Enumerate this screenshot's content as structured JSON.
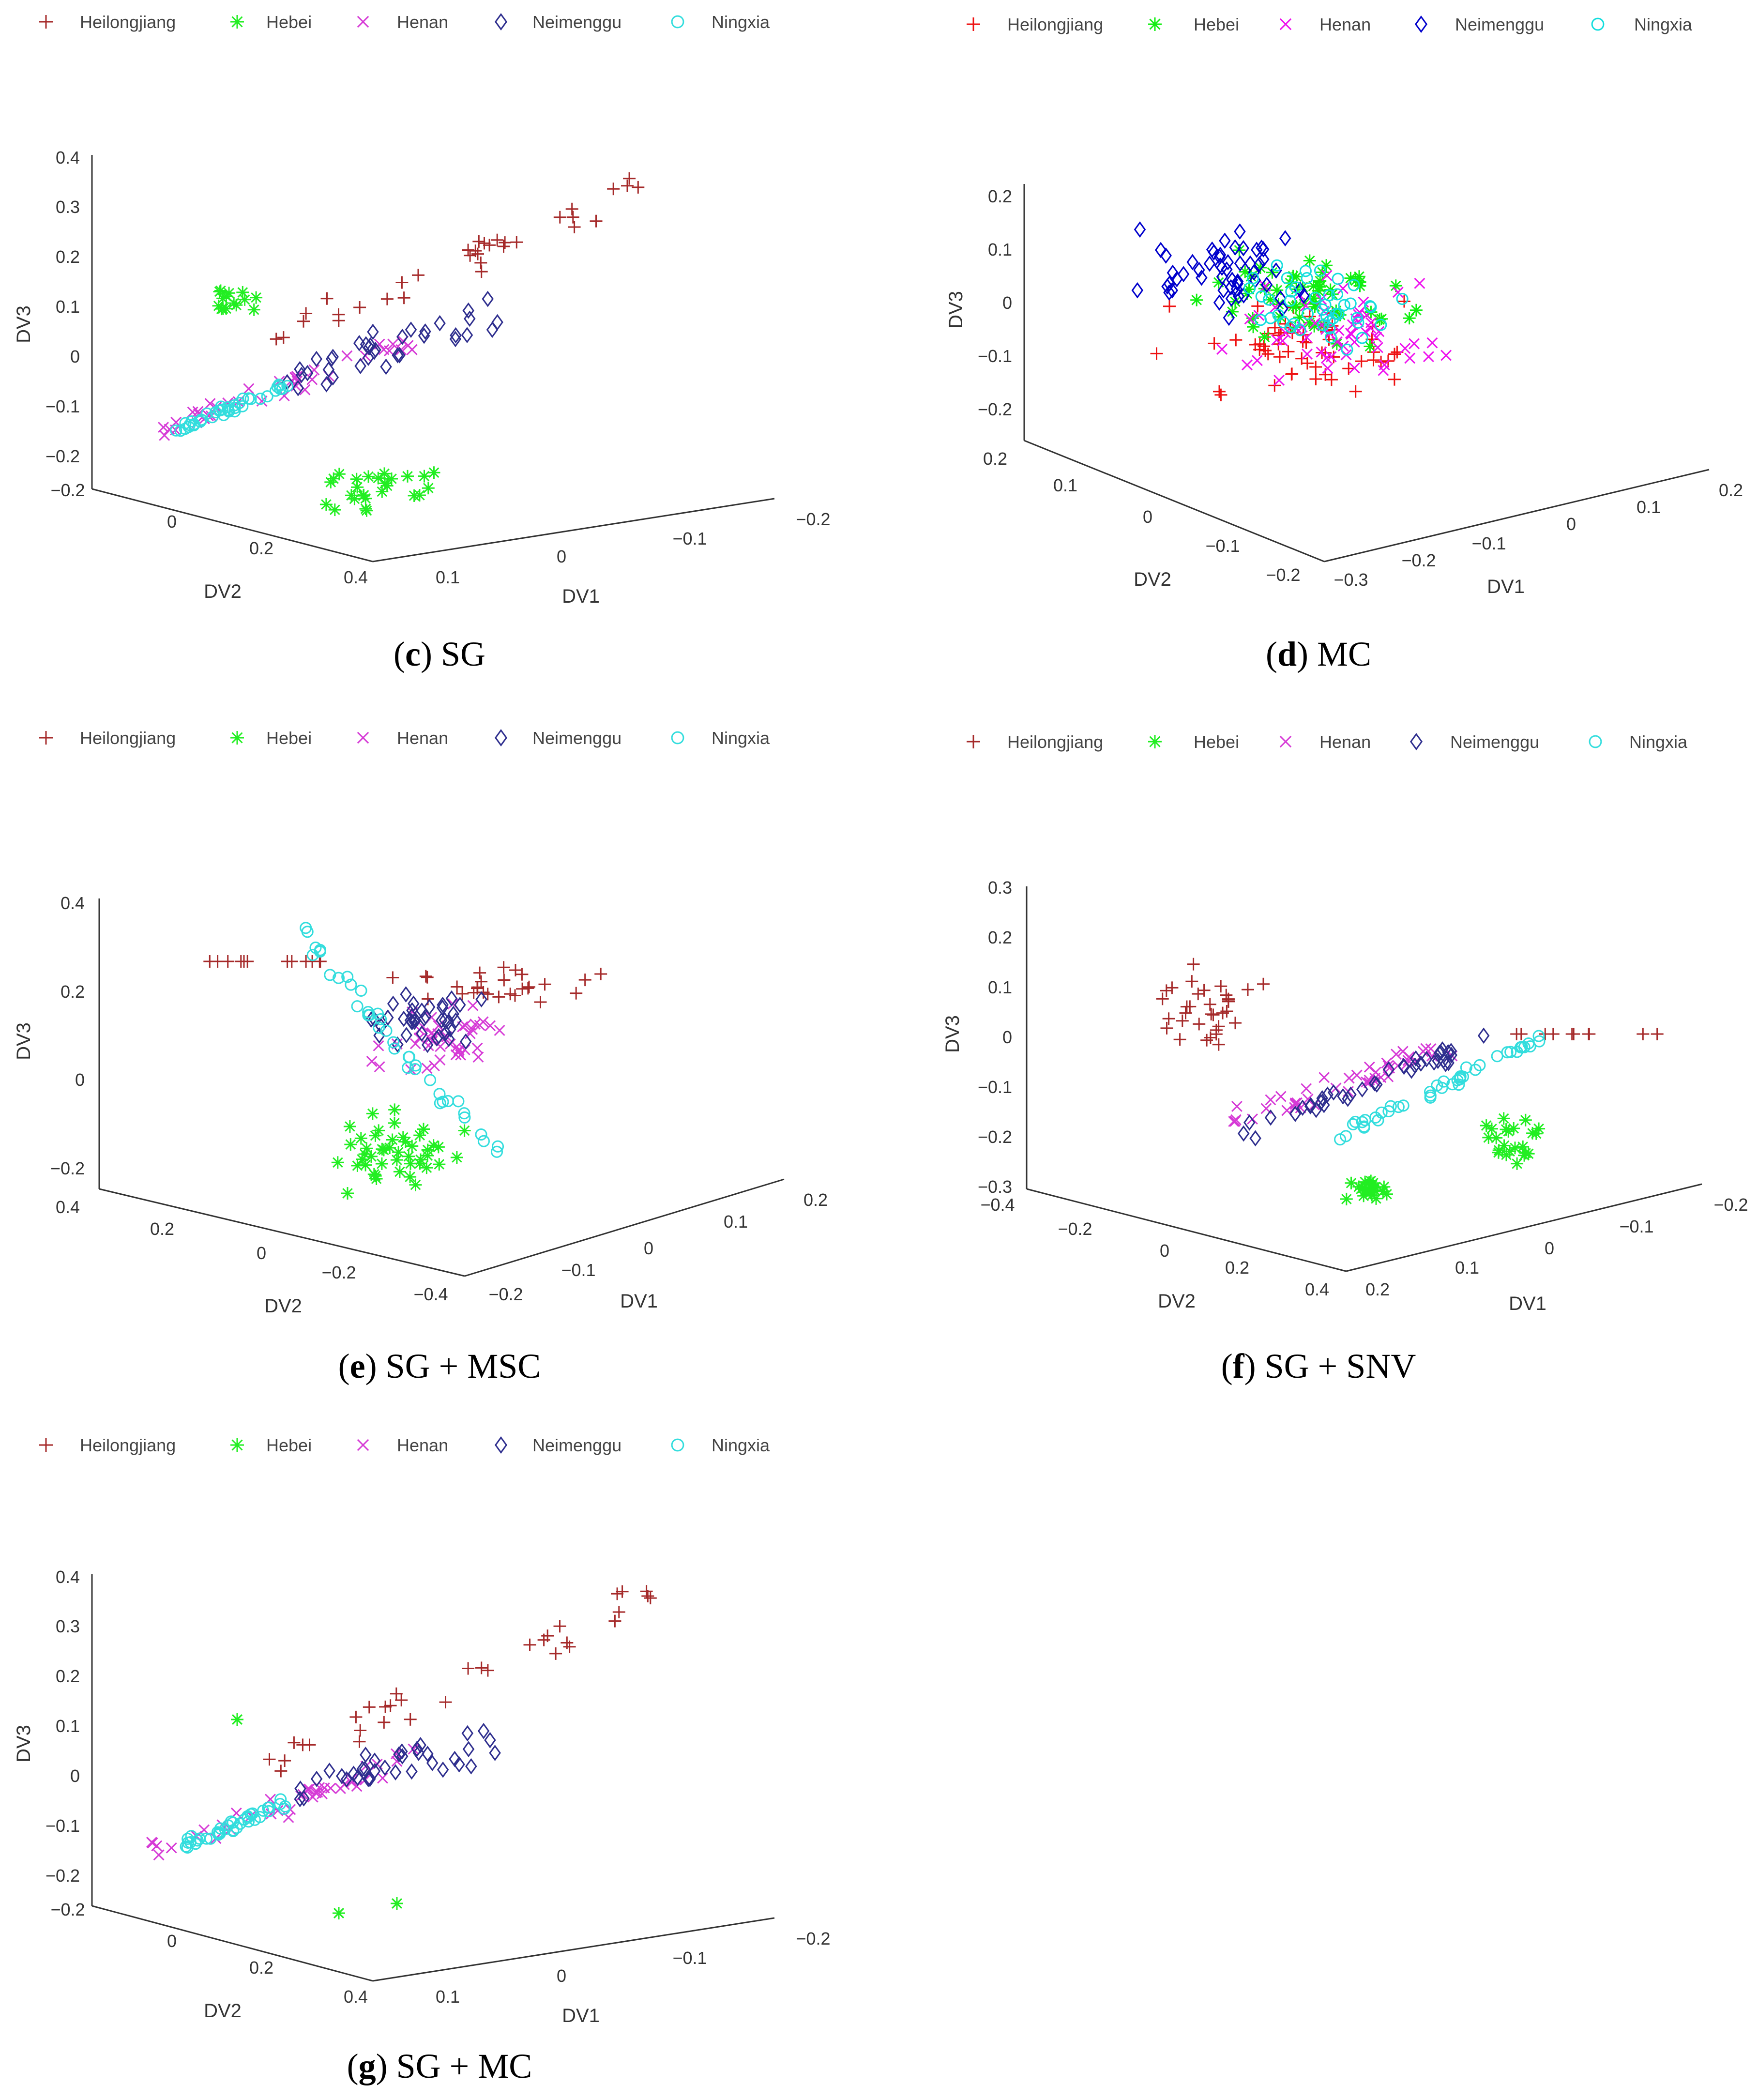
{
  "legend": {
    "labels": [
      "Heilongjiang",
      "Hebei",
      "Henan",
      "Neimenggu",
      "Ningxia"
    ],
    "markers": [
      "+",
      "*",
      "x",
      "diamond",
      "circle"
    ]
  },
  "axis_titles": {
    "x": "DV1",
    "y": "DV2",
    "z": "DV3"
  },
  "palettes": {
    "dark": [
      "#a52a2a",
      "#22ee22",
      "#d63ad6",
      "#2e2e8e",
      "#33dddd"
    ],
    "bright": [
      "#ee1111",
      "#11ee11",
      "#ee11ee",
      "#0000cc",
      "#11dddd"
    ]
  },
  "chart_data": [
    {
      "id": "c",
      "type": "scatter",
      "subtype": "3d",
      "palette": "dark",
      "caption": {
        "letter": "c",
        "text": ") SG"
      },
      "z_ticks": [
        "0.4",
        "0.3",
        "0.2",
        "0.1",
        "0",
        "−0.1",
        "−0.2"
      ],
      "y_ticks": [
        "−0.2",
        "0",
        "0.2",
        "0.4"
      ],
      "x_ticks": [
        "0.1",
        "0",
        "−0.1",
        "−0.2"
      ],
      "view": "orient-1",
      "series": [
        {
          "name": "Heilongjiang",
          "cluster": "high"
        },
        {
          "name": "Hebei",
          "cluster": "low"
        },
        {
          "name": "Henan",
          "cluster": "mid"
        },
        {
          "name": "Neimenggu",
          "cluster": "center"
        },
        {
          "name": "Ningxia",
          "cluster": "left"
        }
      ]
    },
    {
      "id": "d",
      "type": "scatter",
      "subtype": "3d",
      "palette": "bright",
      "caption": {
        "letter": "d",
        "text": ") MC"
      },
      "z_ticks": [
        "0.2",
        "0.1",
        "0",
        "−0.1",
        "−0.2"
      ],
      "y_ticks": [
        "0.2",
        "0.1",
        "0",
        "−0.1",
        "−0.2"
      ],
      "x_ticks": [
        "−0.3",
        "−0.2",
        "−0.1",
        "0",
        "0.1",
        "0.2"
      ],
      "view": "orient-2",
      "series": [
        {
          "name": "Heilongjiang",
          "cluster": "spread"
        },
        {
          "name": "Hebei",
          "cluster": "spread"
        },
        {
          "name": "Henan",
          "cluster": "spread"
        },
        {
          "name": "Neimenggu",
          "cluster": "spread"
        },
        {
          "name": "Ningxia",
          "cluster": "spread"
        }
      ]
    },
    {
      "id": "e",
      "type": "scatter",
      "subtype": "3d",
      "palette": "dark",
      "caption": {
        "letter": "e",
        "text": ") SG + MSC"
      },
      "z_ticks": [
        "0.4",
        "0.2",
        "0",
        "−0.2"
      ],
      "y_ticks": [
        "0.4",
        "0.2",
        "0",
        "−0.2",
        "−0.4"
      ],
      "x_ticks": [
        "−0.2",
        "−0.1",
        "0",
        "0.1",
        "0.2"
      ],
      "view": "orient-3",
      "series": [
        {
          "name": "Heilongjiang",
          "cluster": "top-row"
        },
        {
          "name": "Hebei",
          "cluster": "low"
        },
        {
          "name": "Henan",
          "cluster": "mid"
        },
        {
          "name": "Neimenggu",
          "cluster": "center"
        },
        {
          "name": "Ningxia",
          "cluster": "mixed"
        }
      ]
    },
    {
      "id": "f",
      "type": "scatter",
      "subtype": "3d",
      "palette": "dark",
      "caption": {
        "letter": "f",
        "text": ") SG + SNV"
      },
      "z_ticks": [
        "0.3",
        "0.2",
        "0.1",
        "0",
        "−0.1",
        "−0.2",
        "−0.3"
      ],
      "y_ticks": [
        "−0.4",
        "−0.2",
        "0",
        "0.2",
        "0.4"
      ],
      "x_ticks": [
        "0.2",
        "0.1",
        "0",
        "−0.1",
        "−0.2"
      ],
      "view": "orient-4",
      "series": [
        {
          "name": "Heilongjiang",
          "cluster": "left-high"
        },
        {
          "name": "Hebei",
          "cluster": "low-right"
        },
        {
          "name": "Henan",
          "cluster": "diag"
        },
        {
          "name": "Neimenggu",
          "cluster": "diag"
        },
        {
          "name": "Ningxia",
          "cluster": "diag"
        }
      ]
    },
    {
      "id": "g",
      "type": "scatter",
      "subtype": "3d",
      "palette": "dark",
      "caption": {
        "letter": "g",
        "text": ") SG + MC"
      },
      "z_ticks": [
        "0.4",
        "0.3",
        "0.2",
        "0.1",
        "0",
        "−0.1",
        "−0.2"
      ],
      "y_ticks": [
        "−0.2",
        "0",
        "0.2",
        "0.4"
      ],
      "x_ticks": [
        "0.1",
        "0",
        "−0.1",
        "−0.2"
      ],
      "view": "orient-1",
      "series": [
        {
          "name": "Heilongjiang",
          "cluster": "high"
        },
        {
          "name": "Hebei",
          "cluster": "low"
        },
        {
          "name": "Henan",
          "cluster": "mid"
        },
        {
          "name": "Neimenggu",
          "cluster": "center"
        },
        {
          "name": "Ningxia",
          "cluster": "left"
        }
      ]
    }
  ]
}
